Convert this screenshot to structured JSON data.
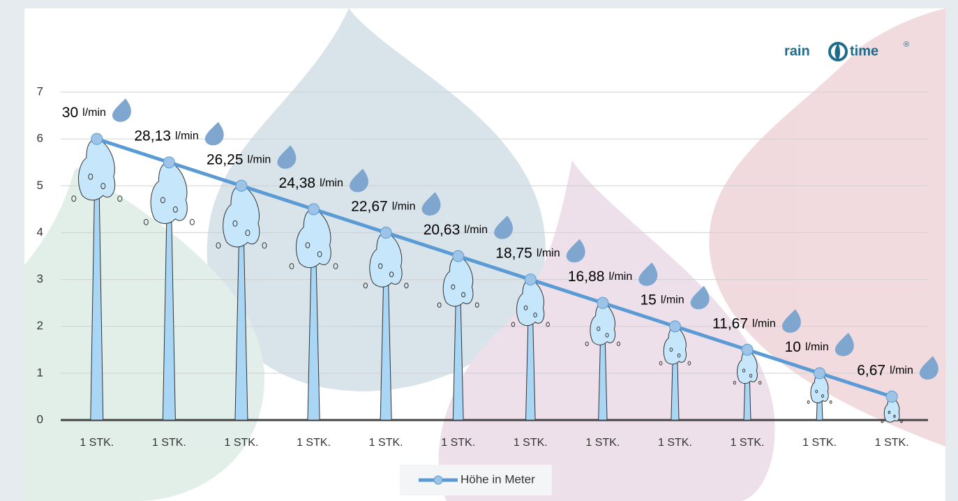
{
  "chart_data": {
    "type": "line",
    "categories": [
      "1 STK.",
      "1 STK.",
      "1 STK.",
      "1 STK.",
      "1 STK.",
      "1 STK.",
      "1 STK.",
      "1 STK.",
      "1 STK.",
      "1 STK.",
      "1 STK.",
      "1 STK."
    ],
    "series": [
      {
        "name": "Höhe in Meter",
        "color": "#5b9bd5",
        "values": [
          6,
          5.5,
          5,
          4.5,
          4,
          3.5,
          3,
          2.5,
          2,
          1.5,
          1,
          0.5
        ]
      }
    ],
    "flow_values": [
      "30",
      "28,13",
      "26,25",
      "24,38",
      "22,67",
      "20,63",
      "18,75",
      "16,88",
      "15",
      "11,67",
      "10",
      "6,67"
    ],
    "flow_unit": "l/min",
    "ylim": [
      0,
      7
    ],
    "yticks": [
      0,
      1,
      2,
      3,
      4,
      5,
      6,
      7
    ],
    "grid": true,
    "legend": "bottom",
    "logo": {
      "left": "rain",
      "right": "time",
      "mark": "®"
    }
  }
}
